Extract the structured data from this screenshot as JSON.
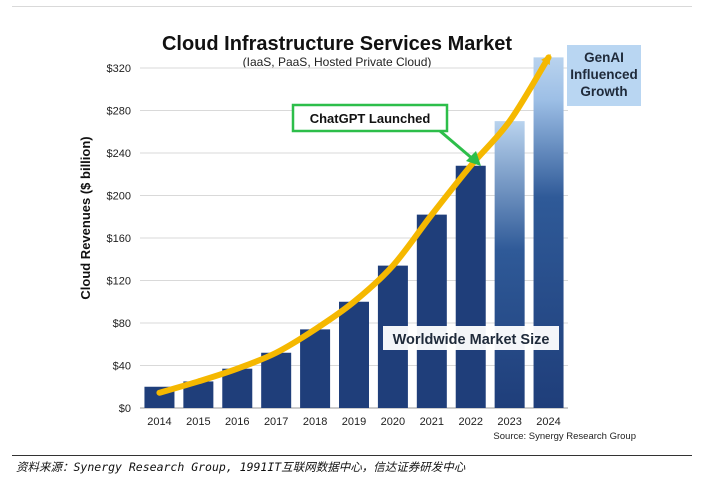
{
  "chart_data": {
    "type": "bar",
    "title": "Cloud Infrastructure Services Market",
    "subtitle": "(IaaS, PaaS, Hosted Private Cloud)",
    "xlabel": "",
    "ylabel": "Cloud Revenues ($ billion)",
    "categories": [
      "2014",
      "2015",
      "2016",
      "2017",
      "2018",
      "2019",
      "2020",
      "2021",
      "2022",
      "2023",
      "2024"
    ],
    "values": [
      20,
      25,
      37,
      52,
      74,
      100,
      134,
      182,
      228,
      270,
      330
    ],
    "ylim": [
      0,
      330
    ],
    "yticks": [
      0,
      40,
      80,
      120,
      160,
      200,
      240,
      280,
      320
    ],
    "ytick_labels": [
      "$0",
      "$40",
      "$80",
      "$120",
      "$160",
      "$200",
      "$240",
      "$280",
      "$320"
    ],
    "bar_color": "#1f3e7a",
    "genai_color": "#a9c8ea",
    "trend_color": "#f5b800",
    "annotations": {
      "chatgpt": "ChatGPT Launched",
      "genai_line1": "GenAI",
      "genai_line2": "Influenced",
      "genai_line3": "Growth",
      "market_size": "Worldwide Market Size"
    },
    "source": "Source: Synergy Research Group",
    "grid": true,
    "legend": "none"
  },
  "caption": "资料来源：Synergy Research Group, 1991IT互联网数据中心，信达证券研发中心"
}
